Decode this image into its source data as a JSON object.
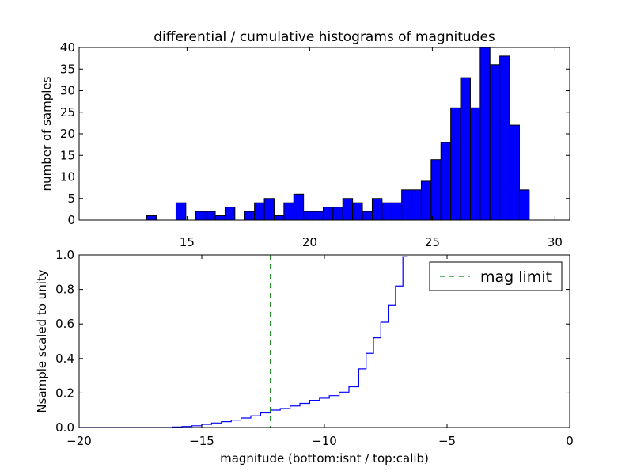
{
  "chart_data": [
    {
      "type": "bar",
      "title": "differential / cumulative histograms of magnitudes",
      "xlabel": "",
      "ylabel": "number of samples",
      "xlim": [
        10.6,
        30.6
      ],
      "ylim": [
        0,
        40
      ],
      "xticks": [
        15,
        20,
        25,
        30
      ],
      "yticks": [
        0,
        5,
        10,
        15,
        20,
        25,
        30,
        35,
        40
      ],
      "bar_color": "#0000ff",
      "bin_start": 10.55,
      "bin_width": 0.4,
      "x": [
        10.75,
        11.15,
        11.55,
        11.95,
        12.35,
        12.75,
        13.15,
        13.55,
        13.95,
        14.35,
        14.75,
        15.15,
        15.55,
        15.95,
        16.35,
        16.75,
        17.15,
        17.55,
        17.95,
        18.35,
        18.75,
        19.15,
        19.55,
        19.95,
        20.35,
        20.75,
        21.15,
        21.55,
        21.95,
        22.35,
        22.75,
        23.15,
        23.55,
        23.95,
        24.35,
        24.75,
        25.15,
        25.55,
        25.95,
        26.35,
        26.75,
        27.15,
        27.55,
        27.95,
        28.35,
        28.75,
        29.15,
        29.55
      ],
      "values": [
        0,
        0,
        0,
        0,
        0,
        0,
        0,
        1,
        0,
        0,
        4,
        0,
        2,
        2,
        1,
        3,
        0,
        2,
        4,
        5,
        1,
        4,
        6,
        2,
        2,
        3,
        3,
        5,
        4,
        2,
        5,
        4,
        4,
        7,
        7,
        9,
        14,
        18,
        26,
        33,
        26,
        40,
        36,
        38,
        22,
        7,
        0,
        0
      ]
    },
    {
      "type": "line",
      "title": "",
      "xlabel": "magnitude (bottom:isnt / top:calib)",
      "ylabel": "Nsample scaled to unity",
      "xlim": [
        -20,
        0
      ],
      "ylim": [
        0,
        1.0
      ],
      "xticks": [
        -20,
        -15,
        -10,
        -5,
        0
      ],
      "yticks": [
        0.0,
        0.2,
        0.4,
        0.6,
        0.8,
        1.0
      ],
      "xtick_labels": [
        "−20",
        "−15",
        "−10",
        "−5",
        "0"
      ],
      "ytick_labels": [
        "0.0",
        "0.2",
        "0.4",
        "0.6",
        "0.8",
        "1.0"
      ],
      "series": [
        {
          "style": "step",
          "color": "#0000ff",
          "x": [
            -20,
            -16.2,
            -15.8,
            -15.4,
            -15.0,
            -14.6,
            -14.2,
            -13.8,
            -13.4,
            -13.0,
            -12.6,
            -12.2,
            -11.8,
            -11.4,
            -11.0,
            -10.6,
            -10.2,
            -9.8,
            -9.4,
            -9.0,
            -8.6,
            -8.3,
            -8.0,
            -7.7,
            -7.4,
            -7.1,
            -6.8
          ],
          "y": [
            0.0,
            0.003,
            0.006,
            0.01,
            0.018,
            0.026,
            0.034,
            0.043,
            0.055,
            0.068,
            0.085,
            0.101,
            0.11,
            0.125,
            0.14,
            0.158,
            0.17,
            0.185,
            0.205,
            0.236,
            0.34,
            0.43,
            0.52,
            0.61,
            0.71,
            0.82,
            0.99
          ]
        }
      ],
      "mag_limit": -12.2,
      "mag_limit_color": "#008000",
      "legend": {
        "label": "mag limit",
        "placement": "top-right"
      }
    }
  ]
}
